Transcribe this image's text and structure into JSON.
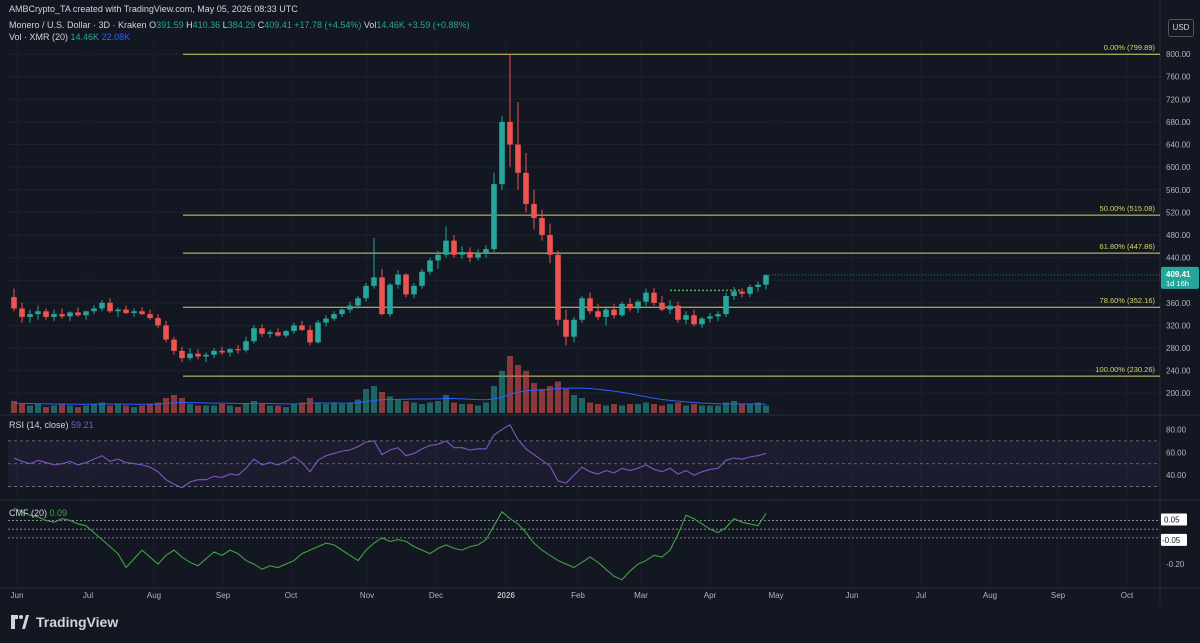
{
  "header": {
    "credit": "AMBCrypto_TA created with TradingView.com, May 05, 2026 08:33 UTC"
  },
  "legend": {
    "symbol": "Monero / U.S. Dollar · 3D · Kraken",
    "o_label": "O",
    "o_value": "391.59",
    "h_label": "H",
    "h_value": "410.36",
    "l_label": "L",
    "l_value": "384.29",
    "c_label": "C",
    "c_value": "409.41",
    "change": "+17.78 (+4.54%)",
    "vol_label": "Vol",
    "vol_value": "14.46K",
    "vol_change": "+3.59 (+0.88%)",
    "vol_indicator": "Vol · XMR (20)",
    "vol_v1": "14.46K",
    "vol_v2": "22.08K",
    "rsi_label": "RSI (14, close)",
    "rsi_value": "59.21",
    "cmf_label": "CMF (20)",
    "cmf_value": "0.09"
  },
  "currency_button": "USD",
  "brand": "TradingView",
  "price_badge": {
    "value": "409.41",
    "countdown": "1d 16h"
  },
  "colors": {
    "background": "#131722",
    "up": "#26a69a",
    "down": "#ef5350",
    "fib": "#d4d46b",
    "rsi": "#7e57c2",
    "cmf": "#43a047",
    "volume_ma": "#2962ff"
  },
  "chart_data": [
    {
      "type": "candlestick",
      "title": "Monero / U.S. Dollar · 3D · Kraken",
      "ylim": [
        165,
        825
      ],
      "y_ticks": [
        "800.00",
        "760.00",
        "720.00",
        "680.00",
        "640.00",
        "600.00",
        "560.00",
        "520.00",
        "480.00",
        "440.00",
        "400.00",
        "360.00",
        "320.00",
        "280.00",
        "240.00",
        "200.00"
      ],
      "x_ticks": [
        "Jun",
        "Jul",
        "Aug",
        "Sep",
        "Oct",
        "Nov",
        "Dec",
        "2026",
        "Feb",
        "Mar",
        "Apr",
        "May",
        "Jun",
        "Jul",
        "Aug",
        "Sep",
        "Oct"
      ],
      "fib_levels": [
        {
          "label": "0.00% (799.89)",
          "value": 799.89
        },
        {
          "label": "50.00% (515.08)",
          "value": 515.08
        },
        {
          "label": "61.80% (447.86)",
          "value": 447.86
        },
        {
          "label": "78.60% (352.16)",
          "value": 352.16
        },
        {
          "label": "100.00% (230.26)",
          "value": 230.26
        }
      ],
      "resistance_level": 382,
      "last_close": 409.41,
      "candles": [
        [
          370,
          385,
          345,
          350
        ],
        [
          350,
          360,
          325,
          335
        ],
        [
          335,
          348,
          325,
          340
        ],
        [
          340,
          355,
          330,
          345
        ],
        [
          345,
          350,
          330,
          335
        ],
        [
          335,
          348,
          328,
          340
        ],
        [
          340,
          350,
          332,
          336
        ],
        [
          336,
          345,
          328,
          343
        ],
        [
          343,
          352,
          335,
          338
        ],
        [
          338,
          346,
          330,
          345
        ],
        [
          345,
          356,
          340,
          350
        ],
        [
          350,
          365,
          345,
          360
        ],
        [
          360,
          368,
          342,
          345
        ],
        [
          345,
          352,
          335,
          348
        ],
        [
          348,
          355,
          340,
          342
        ],
        [
          342,
          350,
          335,
          345
        ],
        [
          345,
          352,
          338,
          340
        ],
        [
          340,
          348,
          330,
          333
        ],
        [
          333,
          340,
          315,
          320
        ],
        [
          320,
          328,
          290,
          295
        ],
        [
          295,
          300,
          268,
          275
        ],
        [
          275,
          282,
          255,
          262
        ],
        [
          262,
          280,
          258,
          270
        ],
        [
          270,
          278,
          260,
          265
        ],
        [
          265,
          272,
          255,
          268
        ],
        [
          268,
          280,
          262,
          275
        ],
        [
          275,
          282,
          268,
          272
        ],
        [
          272,
          280,
          265,
          278
        ],
        [
          278,
          285,
          270,
          276
        ],
        [
          276,
          300,
          272,
          292
        ],
        [
          292,
          320,
          288,
          315
        ],
        [
          315,
          322,
          300,
          305
        ],
        [
          305,
          312,
          298,
          308
        ],
        [
          308,
          315,
          300,
          302
        ],
        [
          302,
          312,
          298,
          310
        ],
        [
          310,
          325,
          305,
          320
        ],
        [
          320,
          328,
          310,
          312
        ],
        [
          312,
          320,
          285,
          290
        ],
        [
          290,
          330,
          288,
          325
        ],
        [
          325,
          338,
          318,
          332
        ],
        [
          332,
          345,
          328,
          340
        ],
        [
          340,
          352,
          335,
          348
        ],
        [
          348,
          362,
          342,
          355
        ],
        [
          355,
          372,
          350,
          368
        ],
        [
          368,
          395,
          362,
          390
        ],
        [
          390,
          475,
          385,
          405
        ],
        [
          405,
          420,
          338,
          340
        ],
        [
          340,
          395,
          335,
          392
        ],
        [
          392,
          418,
          385,
          410
        ],
        [
          410,
          412,
          370,
          375
        ],
        [
          375,
          395,
          368,
          390
        ],
        [
          390,
          420,
          385,
          415
        ],
        [
          415,
          440,
          410,
          435
        ],
        [
          435,
          452,
          420,
          445
        ],
        [
          445,
          495,
          440,
          470
        ],
        [
          470,
          480,
          440,
          445
        ],
        [
          445,
          460,
          438,
          450
        ],
        [
          450,
          458,
          432,
          440
        ],
        [
          440,
          455,
          435,
          448
        ],
        [
          448,
          462,
          440,
          455
        ],
        [
          455,
          590,
          450,
          570
        ],
        [
          570,
          690,
          560,
          680
        ],
        [
          680,
          800,
          600,
          640
        ],
        [
          640,
          715,
          560,
          590
        ],
        [
          590,
          625,
          520,
          535
        ],
        [
          535,
          560,
          490,
          510
        ],
        [
          510,
          525,
          470,
          480
        ],
        [
          480,
          500,
          430,
          445
        ],
        [
          445,
          452,
          320,
          330
        ],
        [
          330,
          348,
          285,
          300
        ],
        [
          300,
          335,
          290,
          330
        ],
        [
          330,
          372,
          325,
          368
        ],
        [
          368,
          378,
          340,
          345
        ],
        [
          345,
          358,
          330,
          335
        ],
        [
          335,
          352,
          320,
          348
        ],
        [
          348,
          358,
          332,
          338
        ],
        [
          338,
          362,
          335,
          358
        ],
        [
          358,
          368,
          345,
          350
        ],
        [
          350,
          366,
          342,
          362
        ],
        [
          362,
          385,
          355,
          378
        ],
        [
          378,
          386,
          355,
          360
        ],
        [
          360,
          372,
          345,
          348
        ],
        [
          348,
          365,
          340,
          355
        ],
        [
          355,
          362,
          325,
          330
        ],
        [
          330,
          345,
          322,
          338
        ],
        [
          338,
          348,
          318,
          322
        ],
        [
          322,
          335,
          315,
          332
        ],
        [
          332,
          342,
          325,
          336
        ],
        [
          336,
          345,
          328,
          340
        ],
        [
          340,
          378,
          335,
          372
        ],
        [
          372,
          388,
          365,
          380
        ],
        [
          380,
          386,
          370,
          376
        ],
        [
          376,
          392,
          370,
          388
        ],
        [
          388,
          398,
          380,
          392
        ],
        [
          392,
          410,
          384,
          409
        ]
      ]
    },
    {
      "type": "bar",
      "title": "Vol · XMR (20)",
      "values": [
        0.08,
        0.06,
        0.05,
        0.06,
        0.04,
        0.05,
        0.06,
        0.05,
        0.04,
        0.05,
        0.06,
        0.07,
        0.05,
        0.06,
        0.05,
        0.04,
        0.05,
        0.06,
        0.07,
        0.1,
        0.12,
        0.1,
        0.06,
        0.05,
        0.05,
        0.05,
        0.06,
        0.05,
        0.04,
        0.06,
        0.08,
        0.06,
        0.05,
        0.05,
        0.04,
        0.06,
        0.07,
        0.1,
        0.07,
        0.06,
        0.07,
        0.06,
        0.07,
        0.09,
        0.16,
        0.18,
        0.14,
        0.11,
        0.09,
        0.08,
        0.07,
        0.06,
        0.07,
        0.08,
        0.12,
        0.07,
        0.06,
        0.06,
        0.05,
        0.07,
        0.18,
        0.28,
        0.38,
        0.32,
        0.28,
        0.2,
        0.16,
        0.18,
        0.21,
        0.16,
        0.12,
        0.1,
        0.07,
        0.06,
        0.05,
        0.06,
        0.05,
        0.06,
        0.06,
        0.07,
        0.06,
        0.05,
        0.06,
        0.07,
        0.05,
        0.06,
        0.05,
        0.05,
        0.05,
        0.07,
        0.08,
        0.06,
        0.06,
        0.07,
        0.05
      ],
      "ma": [
        0.065,
        0.064,
        0.063,
        0.062,
        0.061,
        0.06,
        0.06,
        0.059,
        0.058,
        0.058,
        0.059,
        0.06,
        0.06,
        0.06,
        0.059,
        0.058,
        0.058,
        0.059,
        0.06,
        0.064,
        0.068,
        0.07,
        0.069,
        0.068,
        0.067,
        0.066,
        0.066,
        0.065,
        0.063,
        0.063,
        0.064,
        0.064,
        0.063,
        0.062,
        0.061,
        0.061,
        0.062,
        0.066,
        0.067,
        0.067,
        0.067,
        0.066,
        0.066,
        0.068,
        0.076,
        0.084,
        0.088,
        0.09,
        0.091,
        0.092,
        0.093,
        0.093,
        0.093,
        0.094,
        0.097,
        0.096,
        0.094,
        0.092,
        0.089,
        0.088,
        0.094,
        0.106,
        0.124,
        0.138,
        0.148,
        0.152,
        0.154,
        0.158,
        0.163,
        0.165,
        0.166,
        0.166,
        0.163,
        0.158,
        0.152,
        0.146,
        0.138,
        0.128,
        0.118,
        0.108,
        0.098,
        0.09,
        0.084,
        0.079,
        0.074,
        0.07,
        0.066,
        0.064,
        0.062,
        0.061,
        0.061,
        0.06,
        0.06,
        0.06,
        0.059
      ]
    },
    {
      "type": "line",
      "title": "RSI (14, close)",
      "ylim": [
        20,
        90
      ],
      "y_ticks": [
        "80.00",
        "60.00",
        "40.00"
      ],
      "bands": [
        70,
        50,
        30
      ],
      "values": [
        55,
        52,
        50,
        53,
        51,
        49,
        50,
        52,
        49,
        51,
        54,
        57,
        52,
        54,
        51,
        50,
        49,
        47,
        43,
        36,
        32,
        29,
        34,
        36,
        36,
        39,
        38,
        41,
        40,
        46,
        54,
        49,
        51,
        49,
        52,
        56,
        51,
        43,
        53,
        57,
        59,
        61,
        62,
        65,
        69,
        70,
        58,
        62,
        64,
        57,
        59,
        63,
        66,
        67,
        70,
        64,
        64,
        62,
        63,
        63,
        75,
        80,
        84,
        71,
        63,
        58,
        53,
        48,
        35,
        33,
        40,
        47,
        43,
        41,
        44,
        42,
        46,
        44,
        46,
        49,
        45,
        43,
        46,
        41,
        44,
        40,
        43,
        45,
        46,
        53,
        55,
        54,
        56,
        57,
        59
      ]
    },
    {
      "type": "line",
      "title": "CMF (20)",
      "ylim": [
        -0.32,
        0.15
      ],
      "y_ticks": [
        "0.05",
        "-0.05",
        "-0.20"
      ],
      "bands": [
        0.05,
        0,
        -0.05
      ],
      "values": [
        0.12,
        0.1,
        0.08,
        0.07,
        0.05,
        0.04,
        0.06,
        0.05,
        0.03,
        0.02,
        -0.02,
        -0.06,
        -0.1,
        -0.14,
        -0.22,
        -0.17,
        -0.12,
        -0.16,
        -0.2,
        -0.15,
        -0.12,
        -0.16,
        -0.19,
        -0.21,
        -0.17,
        -0.13,
        -0.15,
        -0.12,
        -0.14,
        -0.18,
        -0.2,
        -0.23,
        -0.21,
        -0.22,
        -0.2,
        -0.18,
        -0.14,
        -0.12,
        -0.1,
        -0.08,
        -0.09,
        -0.12,
        -0.15,
        -0.18,
        -0.12,
        -0.08,
        -0.05,
        -0.07,
        -0.06,
        -0.07,
        -0.1,
        -0.12,
        -0.14,
        -0.11,
        -0.09,
        -0.11,
        -0.12,
        -0.1,
        -0.09,
        -0.06,
        0.02,
        0.1,
        0.06,
        0.03,
        -0.02,
        -0.08,
        -0.12,
        -0.15,
        -0.18,
        -0.2,
        -0.22,
        -0.19,
        -0.16,
        -0.19,
        -0.23,
        -0.27,
        -0.29,
        -0.24,
        -0.2,
        -0.18,
        -0.15,
        -0.16,
        -0.12,
        -0.03,
        0.08,
        0.06,
        0.03,
        0.0,
        -0.02,
        0.01,
        0.06,
        0.04,
        0.03,
        0.02,
        0.09
      ]
    }
  ]
}
